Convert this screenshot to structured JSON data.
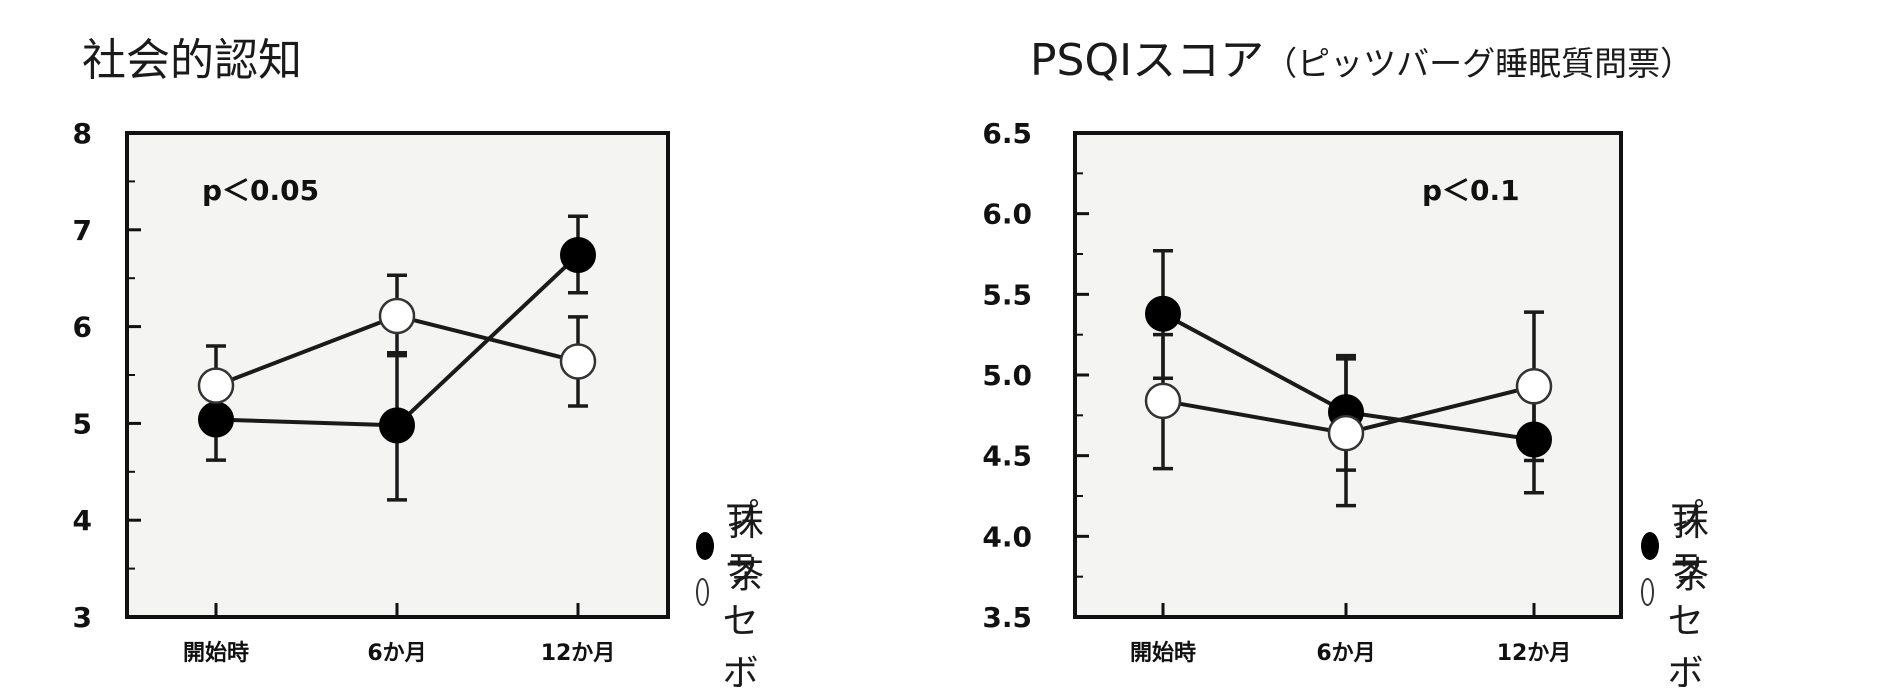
{
  "chart_data": [
    {
      "type": "line",
      "title": "社会的認知",
      "title_sub": "",
      "annotation": "p＜0.05",
      "categories": [
        "開始時",
        "6か月",
        "12か月"
      ],
      "ylim": [
        3,
        8
      ],
      "yticks": [
        "3",
        "4",
        "5",
        "6",
        "7",
        "8"
      ],
      "series": [
        {
          "name": "抹茶",
          "marker": "filled",
          "values": [
            5.04,
            4.98,
            6.74
          ],
          "err_low": [
            4.62,
            4.21,
            6.35
          ],
          "err_high": [
            5.46,
            5.73,
            7.14
          ]
        },
        {
          "name": "プラセボ",
          "marker": "open",
          "values": [
            5.39,
            6.11,
            5.64
          ],
          "err_low": [
            5.0,
            5.7,
            5.18
          ],
          "err_high": [
            5.8,
            6.53,
            6.1
          ]
        }
      ]
    },
    {
      "type": "line",
      "title": "PSQIスコア",
      "title_sub": "（ピッツバーグ睡眠質問票）",
      "annotation": "p＜0.1",
      "categories": [
        "開始時",
        "6か月",
        "12か月"
      ],
      "ylim": [
        3.5,
        6.5
      ],
      "yticks": [
        "3.5",
        "4.0",
        "4.5",
        "5.0",
        "5.5",
        "6.0",
        "6.5"
      ],
      "series": [
        {
          "name": "抹茶",
          "marker": "filled",
          "values": [
            5.38,
            4.77,
            4.6
          ],
          "err_low": [
            4.98,
            4.19,
            4.27
          ],
          "err_high": [
            5.77,
            5.12,
            4.94
          ]
        },
        {
          "name": "プラセボ",
          "marker": "open",
          "values": [
            4.84,
            4.64,
            4.93
          ],
          "err_low": [
            4.42,
            4.41,
            4.47
          ],
          "err_high": [
            5.25,
            5.1,
            5.39
          ]
        }
      ]
    }
  ],
  "colors": {
    "frame_fill": "#f4f4f2",
    "frame_stroke": "#111111",
    "line": "#1a1a1a"
  }
}
